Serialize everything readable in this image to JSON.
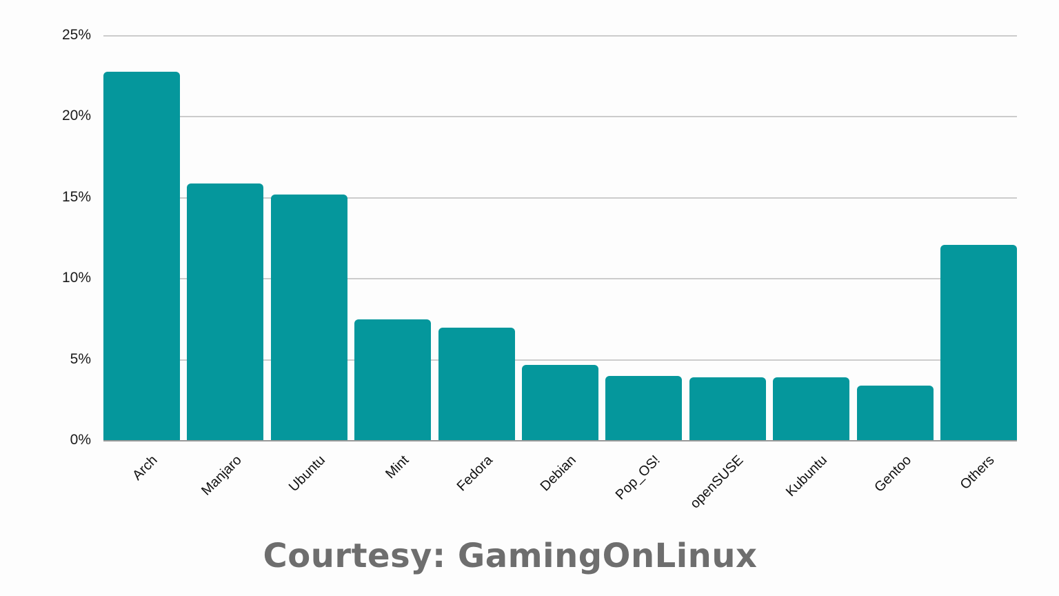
{
  "chart_data": {
    "type": "bar",
    "title": "",
    "xlabel": "",
    "ylabel": "",
    "ylim": [
      0,
      25
    ],
    "yticks": [
      "0%",
      "5%",
      "10%",
      "15%",
      "20%",
      "25%"
    ],
    "grid": true,
    "legend": "none",
    "bar_color": "#05979c",
    "categories": [
      "Arch",
      "Manjaro",
      "Ubuntu",
      "Mint",
      "Fedora",
      "Debian",
      "Pop_OS!",
      "openSUSE",
      "Kubuntu",
      "Gentoo",
      "Others"
    ],
    "values": [
      22.8,
      15.9,
      15.2,
      7.5,
      7.0,
      4.7,
      4.0,
      3.9,
      3.9,
      3.4,
      12.1
    ],
    "unit": "%"
  },
  "credit": "Courtesy: GamingOnLinux"
}
